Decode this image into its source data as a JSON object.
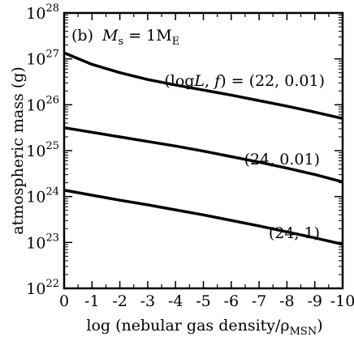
{
  "chart_data": {
    "type": "line",
    "title": "",
    "panel_label": "(b)",
    "panel_condition": {
      "symbol": "M",
      "subscript": "s",
      "equals": " = 1M",
      "unit_subscript": "E"
    },
    "xlabel": {
      "prefix": "log (nebular gas density/ρ",
      "subscript": "MSN",
      "suffix": ")"
    },
    "ylabel": "atmospheric mass (g)",
    "xlim": [
      0,
      -10
    ],
    "ylim_log10": [
      22,
      28
    ],
    "y_scale": "log",
    "x_ticks": [
      0,
      -1,
      -2,
      -3,
      -4,
      -5,
      -6,
      -7,
      -8,
      -9,
      -10
    ],
    "x_tick_labels": [
      "0",
      "-1",
      "-2",
      "-3",
      "-4",
      "-5",
      "-6",
      "-7",
      "-8",
      "-9",
      "-10"
    ],
    "y_ticks_log10": [
      22,
      23,
      24,
      25,
      26,
      27,
      28
    ],
    "y_tick_base": "10",
    "y_tick_exponents": [
      "22",
      "23",
      "24",
      "25",
      "26",
      "27",
      "28"
    ],
    "grid": false,
    "series": [
      {
        "name": "(logL, f) = (22, 0.01)",
        "x": [
          0,
          -1,
          -2,
          -3,
          -4,
          -5,
          -6,
          -7,
          -8,
          -9,
          -10
        ],
        "log10_y": [
          27.13,
          26.88,
          26.7,
          26.55,
          26.43,
          26.32,
          26.21,
          26.09,
          25.97,
          25.84,
          25.7
        ]
      },
      {
        "name": "(24, 0.01)",
        "x": [
          0,
          -1,
          -2,
          -3,
          -4,
          -5,
          -6,
          -7,
          -8,
          -9,
          -10
        ],
        "log10_y": [
          25.5,
          25.4,
          25.3,
          25.2,
          25.1,
          24.99,
          24.87,
          24.75,
          24.62,
          24.48,
          24.32
        ]
      },
      {
        "name": "(24, 1)",
        "x": [
          0,
          -1,
          -2,
          -3,
          -4,
          -5,
          -6,
          -7,
          -8,
          -9,
          -10
        ],
        "log10_y": [
          24.14,
          24.03,
          23.92,
          23.82,
          23.71,
          23.6,
          23.48,
          23.36,
          23.23,
          23.1,
          22.96
        ]
      }
    ],
    "annotations": {
      "series0": {
        "prefix": "(log",
        "italic_L": "L",
        "comma": ", ",
        "italic_f": "f",
        "suffix": ") = (22, 0.01)"
      },
      "series1": "(24, 0.01)",
      "series2": "(24, 1)"
    }
  }
}
